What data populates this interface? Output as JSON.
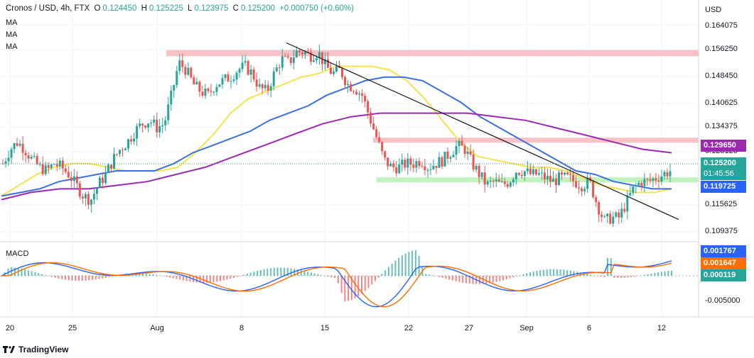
{
  "header": {
    "symbol": "Cronos / USD, 4h, FTX",
    "open_label": "O",
    "open": "0.124450",
    "high_label": "H",
    "high": "0.125225",
    "low_label": "L",
    "low": "0.123975",
    "close_label": "C",
    "close": "0.125200",
    "change": "+0.000750 (+0.60%)",
    "indicators": [
      "MA",
      "MA",
      "MA"
    ]
  },
  "axis": {
    "currency": "USD",
    "price_ticks": [
      "0.164075",
      "0.156250",
      "0.148450",
      "0.140625",
      "0.134375",
      "0.128125",
      "0.115625",
      "0.109375"
    ],
    "macd_ticks": [
      "-0.005000"
    ],
    "time_ticks": [
      "20",
      "25",
      "Aug",
      "8",
      "15",
      "22",
      "27",
      "Sep",
      "6",
      "12"
    ]
  },
  "price_tags": {
    "ma200": "0.129650",
    "last_price": "0.125200",
    "countdown": "01:45:56",
    "ma100": "0.119725"
  },
  "macd": {
    "label": "MACD",
    "tag1": "0.001767",
    "tag2": "0.001647",
    "tag3": "0.000119"
  },
  "brand": "TradingView",
  "colors": {
    "up": "#26a69a",
    "down": "#ef5350",
    "ma_fast": "#f5e34b",
    "ma_mid": "#3b6fe0",
    "ma_slow": "#9c27b0",
    "resistance_zone": "#f7b8bc",
    "support_zone": "#b7f0b1",
    "macd_line": "#2962ff",
    "signal_line": "#ff6d00",
    "last_price_tag": "#26a69a"
  },
  "chart_data": {
    "type": "candlestick",
    "title": "Cronos / USD, 4h, FTX",
    "x_labels": [
      "20",
      "25",
      "Aug",
      "8",
      "15",
      "22",
      "27",
      "Sep",
      "6",
      "12"
    ],
    "y_range": [
      0.1065,
      0.1665
    ],
    "series": [
      {
        "name": "price",
        "close_path": [
          0.127,
          0.131,
          0.133,
          0.131,
          0.128,
          0.126,
          0.125,
          0.127,
          0.126,
          0.124,
          0.121,
          0.118,
          0.117,
          0.121,
          0.124,
          0.128,
          0.131,
          0.133,
          0.136,
          0.138,
          0.139,
          0.137,
          0.138,
          0.146,
          0.155,
          0.153,
          0.149,
          0.147,
          0.146,
          0.149,
          0.15,
          0.151,
          0.153,
          0.154,
          0.152,
          0.148,
          0.147,
          0.152,
          0.156,
          0.155,
          0.158,
          0.158,
          0.157,
          0.158,
          0.154,
          0.152,
          0.153,
          0.149,
          0.148,
          0.146,
          0.14,
          0.134,
          0.128,
          0.126,
          0.126,
          0.127,
          0.127,
          0.128,
          0.126,
          0.127,
          0.128,
          0.13,
          0.132,
          0.131,
          0.127,
          0.124,
          0.121,
          0.122,
          0.121,
          0.122,
          0.125,
          0.125,
          0.124,
          0.124,
          0.123,
          0.122,
          0.123,
          0.123,
          0.122,
          0.121,
          0.122,
          0.116,
          0.111,
          0.112,
          0.112,
          0.116,
          0.12,
          0.122,
          0.122,
          0.123,
          0.124,
          0.125
        ]
      },
      {
        "name": "MA",
        "values": [
          0.118,
          0.121,
          0.124,
          0.126,
          0.127,
          0.127,
          0.126,
          0.125,
          0.125,
          0.125,
          0.126,
          0.13,
          0.135,
          0.141,
          0.145,
          0.147,
          0.149,
          0.151,
          0.152,
          0.154,
          0.154,
          0.154,
          0.153,
          0.15,
          0.145,
          0.139,
          0.133,
          0.129,
          0.128,
          0.127,
          0.126,
          0.126,
          0.125,
          0.123,
          0.121,
          0.12,
          0.119,
          0.119,
          0.12
        ]
      },
      {
        "name": "MA",
        "values": [
          0.118,
          0.119,
          0.12,
          0.122,
          0.123,
          0.124,
          0.125,
          0.125,
          0.125,
          0.127,
          0.13,
          0.132,
          0.134,
          0.136,
          0.139,
          0.141,
          0.143,
          0.146,
          0.148,
          0.15,
          0.151,
          0.151,
          0.15,
          0.147,
          0.144,
          0.14,
          0.137,
          0.134,
          0.131,
          0.128,
          0.125,
          0.124,
          0.122,
          0.121,
          0.12,
          0.12
        ]
      },
      {
        "name": "MA",
        "values": [
          0.117,
          0.119,
          0.12,
          0.12,
          0.121,
          0.122,
          0.124,
          0.126,
          0.129,
          0.132,
          0.135,
          0.138,
          0.14,
          0.141,
          0.141,
          0.141,
          0.141,
          0.14,
          0.139,
          0.137,
          0.135,
          0.133,
          0.131,
          0.13
        ]
      }
    ],
    "zones": [
      {
        "kind": "resistance",
        "range": [
          0.1568,
          0.1585
        ]
      },
      {
        "kind": "resistance",
        "range": [
          0.1328,
          0.1342
        ]
      },
      {
        "kind": "support",
        "range": [
          0.1218,
          0.1232
        ]
      }
    ],
    "trendline": {
      "from": [
        0.1605,
        "Jul 29"
      ],
      "to": [
        0.1115,
        "Sep 12"
      ]
    }
  }
}
